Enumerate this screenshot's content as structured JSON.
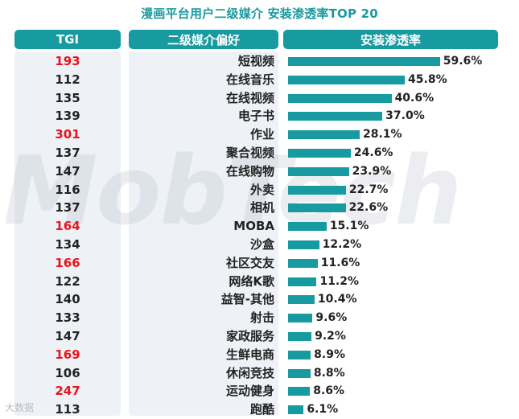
{
  "title": "漫画平台用户二级媒介 安装渗透率TOP 20",
  "headers": {
    "tgi": "TGI",
    "category": "二级媒介偏好",
    "penetration": "安装渗透率"
  },
  "colors": {
    "accent": "#179aa0",
    "highlight": "#e8141b",
    "text": "#222222",
    "panel": "#eef2f7"
  },
  "chart_data": {
    "type": "bar",
    "orientation": "horizontal",
    "categories": [
      "短视频",
      "在线音乐",
      "在线视频",
      "电子书",
      "作业",
      "聚合视频",
      "在线购物",
      "外卖",
      "相机",
      "MOBA",
      "沙盒",
      "社区交友",
      "网络K歌",
      "益智-其他",
      "射击",
      "家政服务",
      "生鲜电商",
      "休闲竞技",
      "运动健身",
      "跑酷"
    ],
    "values": [
      59.6,
      45.8,
      40.6,
      37.0,
      28.1,
      24.6,
      23.9,
      22.7,
      22.6,
      15.1,
      12.2,
      11.6,
      11.2,
      10.4,
      9.6,
      9.2,
      8.9,
      8.8,
      8.6,
      6.1
    ],
    "value_labels": [
      "59.6%",
      "45.8%",
      "40.6%",
      "37.0%",
      "28.1%",
      "24.6%",
      "23.9%",
      "22.7%",
      "22.6%",
      "15.1%",
      "12.2%",
      "11.6%",
      "11.2%",
      "10.4%",
      "9.6%",
      "9.2%",
      "8.9%",
      "8.8%",
      "8.6%",
      "6.1%"
    ],
    "tgi": [
      "193",
      "112",
      "135",
      "139",
      "301",
      "137",
      "147",
      "116",
      "137",
      "164",
      "134",
      "166",
      "122",
      "140",
      "133",
      "147",
      "169",
      "106",
      "247",
      "113"
    ],
    "tgi_highlight": [
      true,
      false,
      false,
      false,
      true,
      false,
      false,
      false,
      false,
      true,
      false,
      true,
      false,
      false,
      false,
      false,
      true,
      false,
      true,
      false
    ],
    "xlim": [
      0,
      60
    ],
    "grid": false,
    "legend": "none"
  },
  "footer_text": "大数据"
}
